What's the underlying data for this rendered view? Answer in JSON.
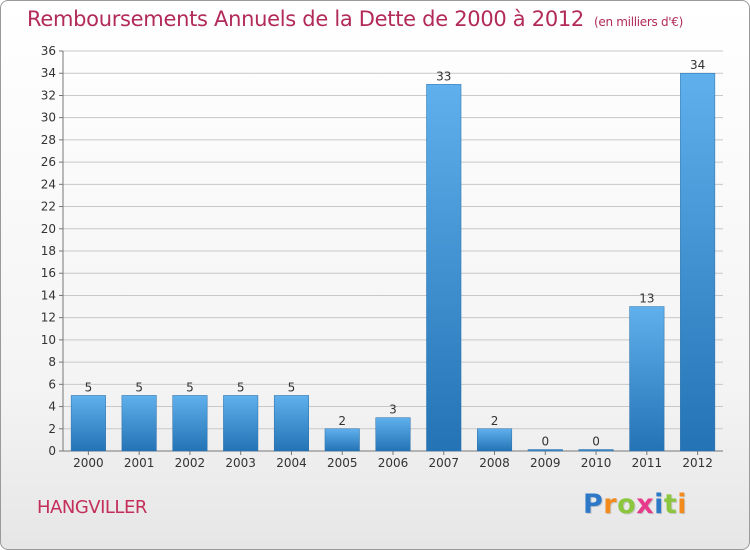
{
  "header": {
    "title": "Remboursements Annuels de la Dette de 2000 à 2012",
    "subtitle": "(en milliers d'€)"
  },
  "footer": {
    "commune": "HANGVILLER"
  },
  "logo": {
    "letters": [
      "P",
      "r",
      "o",
      "x",
      "i",
      "t",
      "i"
    ],
    "colors": [
      "#2e78c8",
      "#f28a1c",
      "#8cc63e",
      "#e83a8a",
      "#2e78c8",
      "#8cc63e",
      "#f28a1c"
    ]
  },
  "colors": {
    "title": "#b22a5a",
    "bar_light": "#5fb0ec",
    "bar_dark": "#2473b5",
    "grid": "#c8c8c8"
  },
  "chart_data": {
    "type": "bar",
    "title": "Remboursements Annuels de la Dette de 2000 à 2012",
    "subtitle": "(en milliers d'€)",
    "categories": [
      "2000",
      "2001",
      "2002",
      "2003",
      "2004",
      "2005",
      "2006",
      "2007",
      "2008",
      "2009",
      "2010",
      "2011",
      "2012"
    ],
    "values": [
      5,
      5,
      5,
      5,
      5,
      2,
      3,
      33,
      2,
      0,
      0,
      13,
      34
    ],
    "data_labels": [
      "5",
      "5",
      "5",
      "5",
      "5",
      "2",
      "3",
      "33",
      "2",
      "0",
      "0",
      "13",
      "34"
    ],
    "ylim": [
      0,
      36
    ],
    "yticks": [
      0,
      2,
      4,
      6,
      8,
      10,
      12,
      14,
      16,
      18,
      20,
      22,
      24,
      26,
      28,
      30,
      32,
      34,
      36
    ],
    "xlabel": "",
    "ylabel": "",
    "grid": true
  }
}
